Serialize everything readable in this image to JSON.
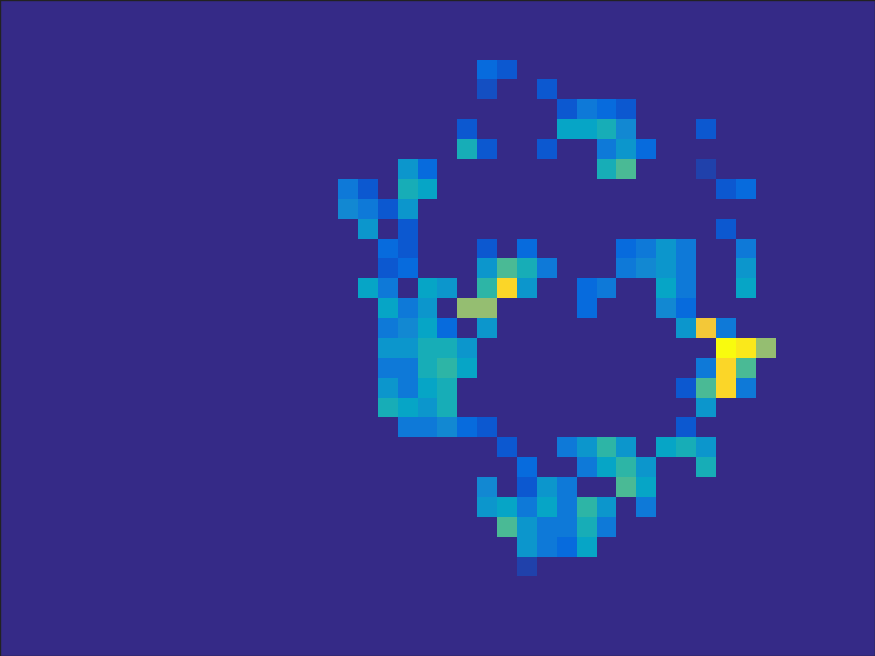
{
  "chart_data": {
    "type": "heatmap",
    "tick_labels": false,
    "cells": [
      [
        0,
        0,
        0,
        0,
        0,
        0,
        0,
        0,
        0,
        0,
        0,
        0,
        0,
        0,
        0,
        0,
        0,
        0,
        0,
        0,
        0,
        0,
        0,
        0,
        0,
        0,
        0,
        0,
        0,
        0,
        0,
        0,
        0,
        0,
        0,
        0,
        0,
        0,
        0,
        0,
        0,
        0,
        0,
        0
      ],
      [
        0,
        0,
        0,
        0,
        0,
        0,
        0,
        0,
        0,
        0,
        0,
        0,
        0,
        0,
        0,
        0,
        0,
        0,
        0,
        0,
        0,
        0,
        0,
        0,
        0,
        0,
        0,
        0,
        0,
        0,
        0,
        0,
        0,
        0,
        0,
        0,
        0,
        0,
        0,
        0,
        0,
        0,
        0,
        0
      ],
      [
        0,
        0,
        0,
        0,
        0,
        0,
        0,
        0,
        0,
        0,
        0,
        0,
        0,
        0,
        0,
        0,
        0,
        0,
        0,
        0,
        0,
        0,
        0,
        0,
        0,
        0,
        0,
        0,
        0,
        0,
        0,
        0,
        0,
        0,
        0,
        0,
        0,
        0,
        0,
        0,
        0,
        0,
        0,
        0
      ],
      [
        0,
        0,
        0,
        0,
        0,
        0,
        0,
        0,
        0,
        0,
        0,
        0,
        0,
        0,
        0,
        0,
        0,
        0,
        0,
        0,
        0,
        0,
        0,
        0,
        0.15,
        0.1,
        0,
        0,
        0,
        0,
        0,
        0,
        0,
        0,
        0,
        0,
        0,
        0,
        0,
        0,
        0,
        0,
        0,
        0
      ],
      [
        0,
        0,
        0,
        0,
        0,
        0,
        0,
        0,
        0,
        0,
        0,
        0,
        0,
        0,
        0,
        0,
        0,
        0,
        0,
        0,
        0,
        0,
        0,
        0,
        0.08,
        0,
        0,
        0.1,
        0,
        0,
        0,
        0,
        0,
        0,
        0,
        0,
        0,
        0,
        0,
        0,
        0,
        0,
        0,
        0
      ],
      [
        0,
        0,
        0,
        0,
        0,
        0,
        0,
        0,
        0,
        0,
        0,
        0,
        0,
        0,
        0,
        0,
        0,
        0,
        0,
        0,
        0,
        0,
        0,
        0,
        0,
        0,
        0,
        0,
        0.1,
        0.2,
        0.15,
        0.1,
        0,
        0,
        0,
        0,
        0,
        0,
        0,
        0,
        0,
        0,
        0,
        0
      ],
      [
        0,
        0,
        0,
        0,
        0,
        0,
        0,
        0,
        0,
        0,
        0,
        0,
        0,
        0,
        0,
        0,
        0,
        0,
        0,
        0,
        0,
        0,
        0,
        0.1,
        0,
        0,
        0,
        0,
        0.35,
        0.35,
        0.4,
        0.25,
        0,
        0,
        0,
        0.1,
        0,
        0,
        0,
        0,
        0,
        0,
        0,
        0
      ],
      [
        0,
        0,
        0,
        0,
        0,
        0,
        0,
        0,
        0,
        0,
        0,
        0,
        0,
        0,
        0,
        0,
        0,
        0,
        0,
        0,
        0,
        0,
        0,
        0.4,
        0.1,
        0,
        0,
        0.1,
        0,
        0,
        0.2,
        0.3,
        0.15,
        0,
        0,
        0,
        0,
        0,
        0,
        0,
        0,
        0,
        0,
        0
      ],
      [
        0,
        0,
        0,
        0,
        0,
        0,
        0,
        0,
        0,
        0,
        0,
        0,
        0,
        0,
        0,
        0,
        0,
        0,
        0,
        0,
        0.3,
        0.15,
        0,
        0,
        0,
        0,
        0,
        0,
        0,
        0,
        0.4,
        0.5,
        0,
        0,
        0,
        0.05,
        0,
        0,
        0,
        0,
        0,
        0,
        0,
        0
      ],
      [
        0,
        0,
        0,
        0,
        0,
        0,
        0,
        0,
        0,
        0,
        0,
        0,
        0,
        0,
        0,
        0,
        0,
        0.2,
        0.1,
        0,
        0.4,
        0.35,
        0,
        0,
        0,
        0,
        0,
        0,
        0,
        0,
        0,
        0,
        0,
        0,
        0,
        0,
        0.1,
        0.15,
        0,
        0,
        0,
        0,
        0,
        0
      ],
      [
        0,
        0,
        0,
        0,
        0,
        0,
        0,
        0,
        0,
        0,
        0,
        0,
        0,
        0,
        0,
        0,
        0,
        0.25,
        0.2,
        0.1,
        0.3,
        0,
        0,
        0,
        0,
        0,
        0,
        0,
        0,
        0,
        0,
        0,
        0,
        0,
        0,
        0,
        0,
        0,
        0,
        0,
        0,
        0,
        0,
        0
      ],
      [
        0,
        0,
        0,
        0,
        0,
        0,
        0,
        0,
        0,
        0,
        0,
        0,
        0,
        0,
        0,
        0,
        0,
        0,
        0.3,
        0,
        0.1,
        0,
        0,
        0,
        0,
        0,
        0,
        0,
        0,
        0,
        0,
        0,
        0,
        0,
        0,
        0,
        0.1,
        0,
        0,
        0,
        0,
        0,
        0,
        0
      ],
      [
        0,
        0,
        0,
        0,
        0,
        0,
        0,
        0,
        0,
        0,
        0,
        0,
        0,
        0,
        0,
        0,
        0,
        0,
        0,
        0.15,
        0.1,
        0,
        0,
        0,
        0.1,
        0,
        0.15,
        0,
        0,
        0,
        0,
        0.15,
        0.2,
        0.3,
        0.2,
        0,
        0,
        0.2,
        0,
        0,
        0,
        0,
        0,
        0
      ],
      [
        0,
        0,
        0,
        0,
        0,
        0,
        0,
        0,
        0,
        0,
        0,
        0,
        0,
        0,
        0,
        0,
        0,
        0,
        0,
        0.1,
        0.15,
        0,
        0,
        0,
        0.3,
        0.5,
        0.4,
        0.2,
        0,
        0,
        0,
        0.2,
        0.25,
        0.3,
        0.2,
        0,
        0,
        0.3,
        0,
        0,
        0,
        0,
        0,
        0
      ],
      [
        0,
        0,
        0,
        0,
        0,
        0,
        0,
        0,
        0,
        0,
        0,
        0,
        0,
        0,
        0,
        0,
        0,
        0,
        0.35,
        0.2,
        0,
        0.35,
        0.3,
        0,
        0.45,
        0.85,
        0.3,
        0,
        0,
        0.15,
        0.2,
        0,
        0,
        0.35,
        0.2,
        0,
        0,
        0.35,
        0,
        0,
        0,
        0,
        0,
        0
      ],
      [
        0,
        0,
        0,
        0,
        0,
        0,
        0,
        0,
        0,
        0,
        0,
        0,
        0,
        0,
        0,
        0,
        0,
        0,
        0,
        0.35,
        0.2,
        0.3,
        0,
        0.6,
        0.6,
        0,
        0,
        0,
        0,
        0.15,
        0,
        0,
        0,
        0.25,
        0.15,
        0,
        0,
        0,
        0,
        0,
        0,
        0,
        0,
        0
      ],
      [
        0,
        0,
        0,
        0,
        0,
        0,
        0,
        0,
        0,
        0,
        0,
        0,
        0,
        0,
        0,
        0,
        0,
        0,
        0,
        0.2,
        0.25,
        0.35,
        0.15,
        0,
        0.3,
        0,
        0,
        0,
        0,
        0,
        0,
        0,
        0,
        0,
        0.3,
        0.8,
        0.2,
        0,
        0,
        0,
        0,
        0,
        0,
        0
      ],
      [
        0,
        0,
        0,
        0,
        0,
        0,
        0,
        0,
        0,
        0,
        0,
        0,
        0,
        0,
        0,
        0,
        0,
        0,
        0,
        0.3,
        0.3,
        0.4,
        0.4,
        0.3,
        0,
        0,
        0,
        0,
        0,
        0,
        0,
        0,
        0,
        0,
        0,
        0,
        0.95,
        0.9,
        0.6,
        0,
        0,
        0,
        0,
        0
      ],
      [
        0,
        0,
        0,
        0,
        0,
        0,
        0,
        0,
        0,
        0,
        0,
        0,
        0,
        0,
        0,
        0,
        0,
        0,
        0,
        0.2,
        0.2,
        0.4,
        0.45,
        0.35,
        0,
        0,
        0,
        0,
        0,
        0,
        0,
        0,
        0,
        0,
        0,
        0.2,
        0.85,
        0.5,
        0,
        0,
        0,
        0,
        0,
        0
      ],
      [
        0,
        0,
        0,
        0,
        0,
        0,
        0,
        0,
        0,
        0,
        0,
        0,
        0,
        0,
        0,
        0,
        0,
        0,
        0,
        0.3,
        0.2,
        0.35,
        0.4,
        0,
        0,
        0,
        0,
        0,
        0,
        0,
        0,
        0,
        0,
        0,
        0.1,
        0.5,
        0.85,
        0.2,
        0,
        0,
        0,
        0,
        0,
        0
      ],
      [
        0,
        0,
        0,
        0,
        0,
        0,
        0,
        0,
        0,
        0,
        0,
        0,
        0,
        0,
        0,
        0,
        0,
        0,
        0,
        0.4,
        0.35,
        0.3,
        0.4,
        0,
        0,
        0,
        0,
        0,
        0,
        0,
        0,
        0,
        0,
        0,
        0,
        0.3,
        0,
        0,
        0,
        0,
        0,
        0,
        0,
        0
      ],
      [
        0,
        0,
        0,
        0,
        0,
        0,
        0,
        0,
        0,
        0,
        0,
        0,
        0,
        0,
        0,
        0,
        0,
        0,
        0,
        0,
        0.2,
        0.2,
        0.25,
        0.15,
        0.1,
        0,
        0,
        0,
        0,
        0,
        0,
        0,
        0,
        0,
        0.1,
        0,
        0,
        0,
        0,
        0,
        0,
        0,
        0,
        0
      ],
      [
        0,
        0,
        0,
        0,
        0,
        0,
        0,
        0,
        0,
        0,
        0,
        0,
        0,
        0,
        0,
        0,
        0,
        0,
        0,
        0,
        0,
        0,
        0,
        0,
        0,
        0.1,
        0,
        0,
        0.2,
        0.3,
        0.45,
        0.3,
        0,
        0.35,
        0.4,
        0.3,
        0,
        0,
        0,
        0,
        0,
        0,
        0,
        0
      ],
      [
        0,
        0,
        0,
        0,
        0,
        0,
        0,
        0,
        0,
        0,
        0,
        0,
        0,
        0,
        0,
        0,
        0,
        0,
        0,
        0,
        0,
        0,
        0,
        0,
        0,
        0,
        0.15,
        0,
        0,
        0.2,
        0.35,
        0.45,
        0.3,
        0,
        0,
        0.4,
        0,
        0,
        0,
        0,
        0,
        0,
        0,
        0
      ],
      [
        0,
        0,
        0,
        0,
        0,
        0,
        0,
        0,
        0,
        0,
        0,
        0,
        0,
        0,
        0,
        0,
        0,
        0,
        0,
        0,
        0,
        0,
        0,
        0,
        0.25,
        0,
        0.1,
        0.3,
        0.2,
        0,
        0,
        0.5,
        0.35,
        0,
        0,
        0,
        0,
        0,
        0,
        0,
        0,
        0,
        0,
        0
      ],
      [
        0,
        0,
        0,
        0,
        0,
        0,
        0,
        0,
        0,
        0,
        0,
        0,
        0,
        0,
        0,
        0,
        0,
        0,
        0,
        0,
        0,
        0,
        0,
        0,
        0.3,
        0.35,
        0.2,
        0.35,
        0.2,
        0.45,
        0.3,
        0,
        0.2,
        0,
        0,
        0,
        0,
        0,
        0,
        0,
        0,
        0,
        0,
        0
      ],
      [
        0,
        0,
        0,
        0,
        0,
        0,
        0,
        0,
        0,
        0,
        0,
        0,
        0,
        0,
        0,
        0,
        0,
        0,
        0,
        0,
        0,
        0,
        0,
        0,
        0,
        0.5,
        0.3,
        0.2,
        0.2,
        0.4,
        0.2,
        0,
        0,
        0,
        0,
        0,
        0,
        0,
        0,
        0,
        0,
        0,
        0,
        0
      ],
      [
        0,
        0,
        0,
        0,
        0,
        0,
        0,
        0,
        0,
        0,
        0,
        0,
        0,
        0,
        0,
        0,
        0,
        0,
        0,
        0,
        0,
        0,
        0,
        0,
        0,
        0,
        0.3,
        0.2,
        0.15,
        0.35,
        0,
        0,
        0,
        0,
        0,
        0,
        0,
        0,
        0,
        0,
        0,
        0,
        0,
        0
      ],
      [
        0,
        0,
        0,
        0,
        0,
        0,
        0,
        0,
        0,
        0,
        0,
        0,
        0,
        0,
        0,
        0,
        0,
        0,
        0,
        0,
        0,
        0,
        0,
        0,
        0,
        0,
        0.05,
        0,
        0,
        0,
        0,
        0,
        0,
        0,
        0,
        0,
        0,
        0,
        0,
        0,
        0,
        0,
        0,
        0
      ],
      [
        0,
        0,
        0,
        0,
        0,
        0,
        0,
        0,
        0,
        0,
        0,
        0,
        0,
        0,
        0,
        0,
        0,
        0,
        0,
        0,
        0,
        0,
        0,
        0,
        0,
        0,
        0,
        0,
        0,
        0,
        0,
        0,
        0,
        0,
        0,
        0,
        0,
        0,
        0,
        0,
        0,
        0,
        0,
        0
      ],
      [
        0,
        0,
        0,
        0,
        0,
        0,
        0,
        0,
        0,
        0,
        0,
        0,
        0,
        0,
        0,
        0,
        0,
        0,
        0,
        0,
        0,
        0,
        0,
        0,
        0,
        0,
        0,
        0,
        0,
        0,
        0,
        0,
        0,
        0,
        0,
        0,
        0,
        0,
        0,
        0,
        0,
        0,
        0,
        0
      ],
      [
        0,
        0,
        0,
        0,
        0,
        0,
        0,
        0,
        0,
        0,
        0,
        0,
        0,
        0,
        0,
        0,
        0,
        0,
        0,
        0,
        0,
        0,
        0,
        0,
        0,
        0,
        0,
        0,
        0,
        0,
        0,
        0,
        0,
        0,
        0,
        0,
        0,
        0,
        0,
        0,
        0,
        0,
        0,
        0
      ],
      [
        0,
        0,
        0,
        0,
        0,
        0,
        0,
        0,
        0,
        0,
        0,
        0,
        0,
        0,
        0,
        0,
        0,
        0,
        0,
        0,
        0,
        0,
        0,
        0,
        0,
        0,
        0,
        0,
        0,
        0,
        0,
        0,
        0,
        0,
        0,
        0,
        0,
        0,
        0,
        0,
        0,
        0,
        0,
        0
      ]
    ]
  }
}
